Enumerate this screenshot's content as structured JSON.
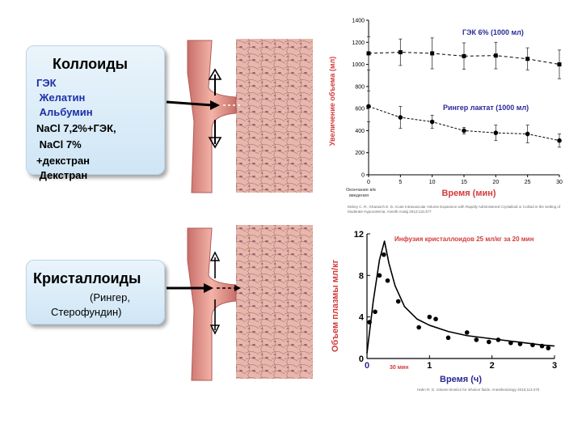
{
  "colloids": {
    "title": "Коллоиды",
    "items": [
      {
        "text": "ГЭК",
        "color": "#1d2fa8"
      },
      {
        "text": " Желатин",
        "color": "#1d2fa8"
      },
      {
        "text": " Альбумин",
        "color": "#1d2fa8"
      },
      {
        "text": "NaCl 7,2%+ГЭК,",
        "color": "#000000"
      },
      {
        "text": " NaCl 7%",
        "color": "#000000"
      },
      {
        "text": "+декстран",
        "color": "#000000"
      },
      {
        "text": " Декстран",
        "color": "#000000"
      }
    ]
  },
  "crystalloids": {
    "title": "Кристаллоиды",
    "subtitle_line1": "(Рингер,",
    "subtitle_line2": "Стерофундин)"
  },
  "chart_data": [
    {
      "type": "line",
      "title": "",
      "xlabel": "Время (мин)",
      "ylabel": "Увеличение объема (мл)",
      "x_ticks": [
        0,
        5,
        10,
        15,
        20,
        25,
        30
      ],
      "y_ticks": [
        0,
        200,
        400,
        600,
        800,
        1000,
        1200,
        1400
      ],
      "xlim": [
        0,
        30
      ],
      "ylim": [
        0,
        1400
      ],
      "x_annotation": "Окончание в/в введения",
      "series": [
        {
          "name": "ГЭК 6% (1000 мл)",
          "color": "#2a2a9a",
          "x": [
            0,
            5,
            10,
            15,
            20,
            25,
            30
          ],
          "values": [
            1100,
            1110,
            1100,
            1075,
            1080,
            1050,
            1000
          ],
          "err": [
            150,
            120,
            140,
            120,
            120,
            100,
            130
          ]
        },
        {
          "name": "Рингер лактат (1000 мл)",
          "color": "#2a2a9a",
          "x": [
            0,
            5,
            10,
            15,
            20,
            25,
            30
          ],
          "values": [
            620,
            520,
            480,
            400,
            380,
            370,
            310
          ],
          "err": [
            140,
            100,
            60,
            30,
            70,
            80,
            60
          ]
        }
      ],
      "reference": "Mckey C. R., Kharasch E. D. Acute Intravascular Volume Expansion with Rapidly Administered Crystalloid or Colloid in the Setting of Moderate Hypovolemia. Anesth Analg 2012;115:377"
    },
    {
      "type": "line",
      "title": "Инфузия кристаллоидов 25 мл/кг за 20 мин",
      "xlabel": "Время (ч)",
      "ylabel": "Объем плазмы мл/кг",
      "x_ticks": [
        "0",
        "1",
        "2",
        "3"
      ],
      "x_extra_label": "30 мин",
      "y_ticks": [
        0,
        4,
        8,
        12
      ],
      "xlim": [
        0,
        3
      ],
      "ylim": [
        0,
        12
      ],
      "series": [
        {
          "name": "Объем плазмы",
          "color": "#000000",
          "points_x": [
            0.04,
            0.13,
            0.2,
            0.27,
            0.33,
            0.5,
            0.83,
            1.0,
            1.1,
            1.3,
            1.6,
            1.75,
            1.95,
            2.1,
            2.3,
            2.45,
            2.65,
            2.8,
            2.9
          ],
          "points_y": [
            3.5,
            4.5,
            8.0,
            10.0,
            7.5,
            5.5,
            3.0,
            4.0,
            3.8,
            2.0,
            2.5,
            1.8,
            1.6,
            1.8,
            1.5,
            1.4,
            1.3,
            1.2,
            1.0
          ],
          "curve_x": [
            0,
            0.1,
            0.2,
            0.28,
            0.35,
            0.45,
            0.6,
            0.8,
            1.0,
            1.3,
            1.6,
            2.0,
            2.4,
            2.8,
            3.0
          ],
          "curve_y": [
            0.5,
            5.5,
            9.5,
            11.3,
            9.2,
            7.0,
            5.0,
            3.8,
            3.2,
            2.6,
            2.2,
            1.9,
            1.6,
            1.3,
            1.2
          ]
        }
      ],
      "reference": "Hahn R. G. Volume kinetics for infusion fluids. Anesthesiology 2010;113:470"
    }
  ]
}
